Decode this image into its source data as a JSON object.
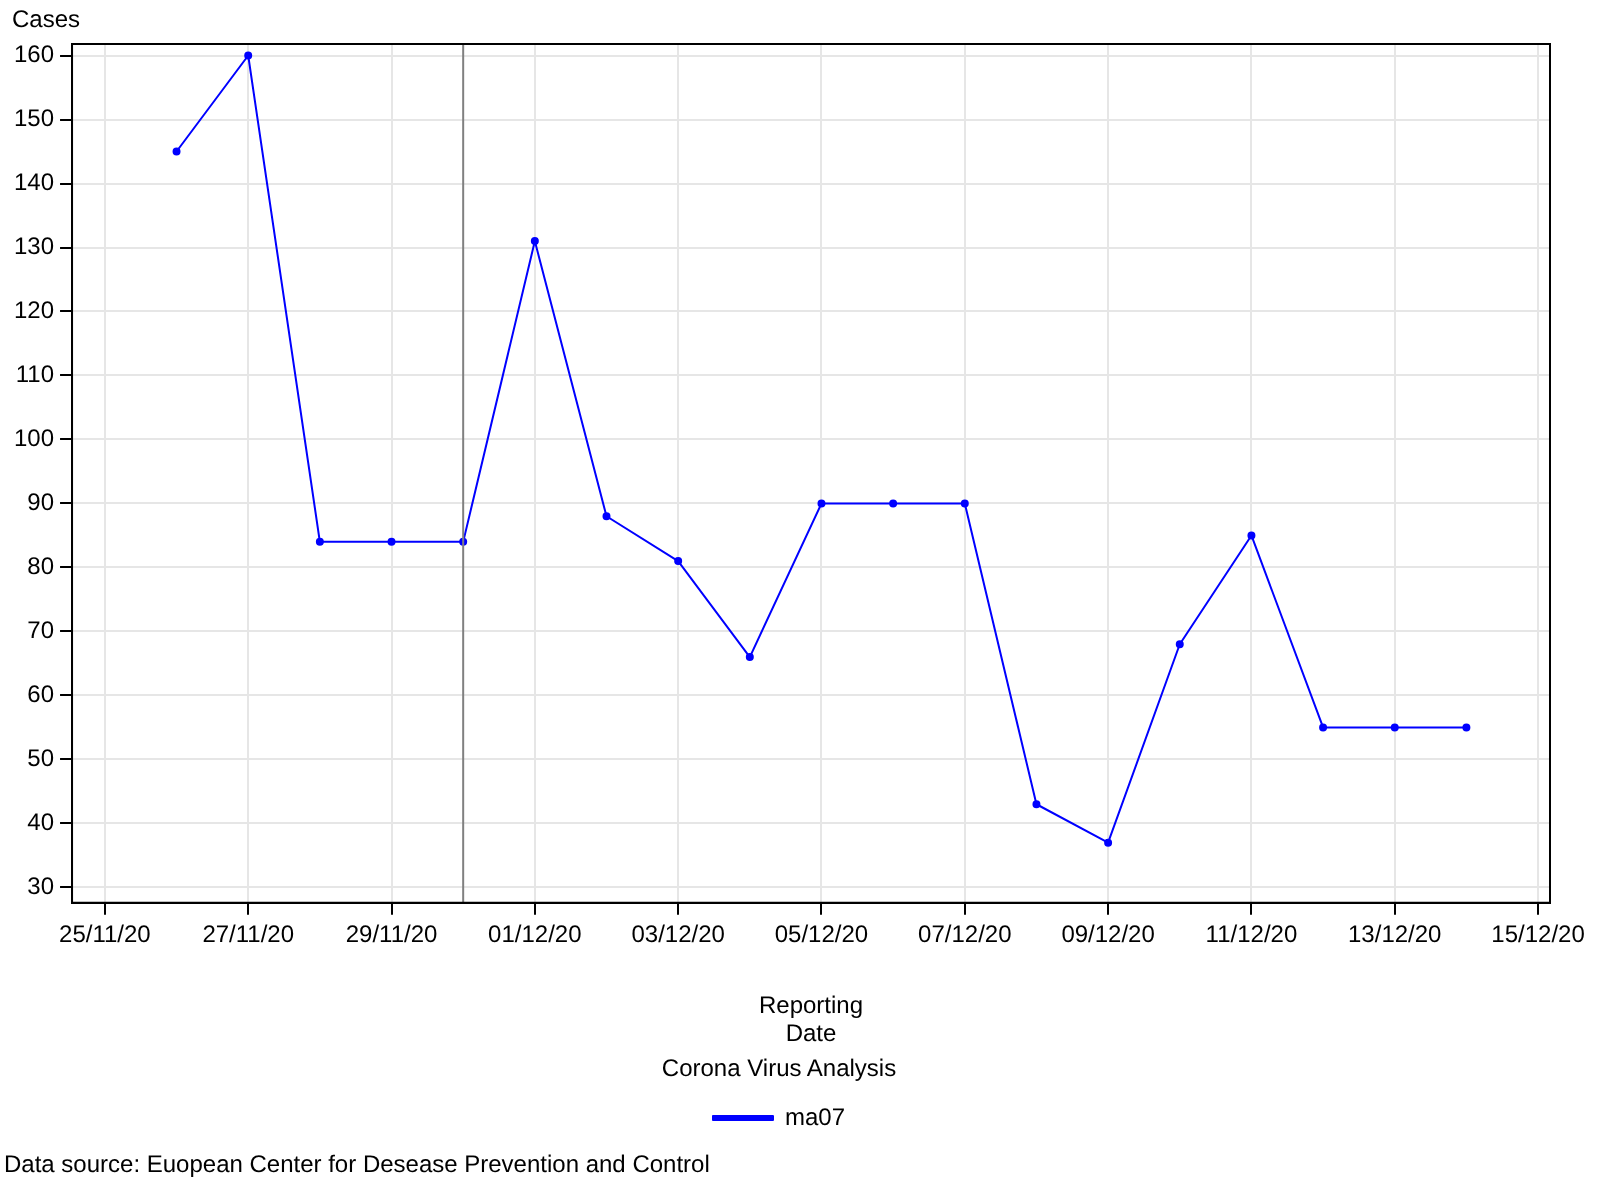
{
  "chart_data": {
    "type": "line",
    "xlabel": "Reporting Date",
    "ylabel": "Cases",
    "legend_title": "Corona Virus Analysis",
    "legend": "bottom",
    "grid": true,
    "marker": "circle",
    "line_style": "solid",
    "x": [
      "--11-26",
      "--11-27",
      "--11-28",
      "--11-29",
      "--11-30",
      "--12-01",
      "--12-02",
      "--12-03",
      "--12-04",
      "--12-05",
      "--12-06",
      "--12-07",
      "--12-08",
      "--12-09",
      "--12-10",
      "--12-11",
      "--12-12",
      "--12-13",
      "--12-14"
    ],
    "series": [
      {
        "name": "ma07",
        "color": "#0000ff",
        "values": [
          145,
          160,
          84,
          84,
          84,
          131,
          88,
          81,
          66,
          90,
          90,
          90,
          43,
          37,
          68,
          85,
          55,
          55,
          55
        ]
      }
    ],
    "xlim": [
      "--11-24T13:00",
      "--12-15T04:00"
    ],
    "xticks": [
      {
        "value": "--11-25",
        "label": "25/11/20"
      },
      {
        "value": "--11-27",
        "label": "27/11/20"
      },
      {
        "value": "--11-29",
        "label": "29/11/20"
      },
      {
        "value": "--12-01",
        "label": "01/12/20"
      },
      {
        "value": "--12-03",
        "label": "03/12/20"
      },
      {
        "value": "--12-05",
        "label": "05/12/20"
      },
      {
        "value": "--12-07",
        "label": "07/12/20"
      },
      {
        "value": "--12-09",
        "label": "09/12/20"
      },
      {
        "value": "--12-11",
        "label": "11/12/20"
      },
      {
        "value": "--12-13",
        "label": "13/12/20"
      },
      {
        "value": "--12-15",
        "label": "15/12/20"
      }
    ],
    "ylim": [
      27.6,
      161.8
    ],
    "yticks": [
      30,
      40,
      50,
      60,
      70,
      80,
      90,
      100,
      110,
      120,
      130,
      140,
      150,
      160
    ],
    "ref_lines": [
      {
        "axis": "x",
        "value": "--11-30",
        "color": "#808080"
      }
    ],
    "annotations": [
      "Data source: Euopean Center for Desease Prevention and Control"
    ]
  }
}
